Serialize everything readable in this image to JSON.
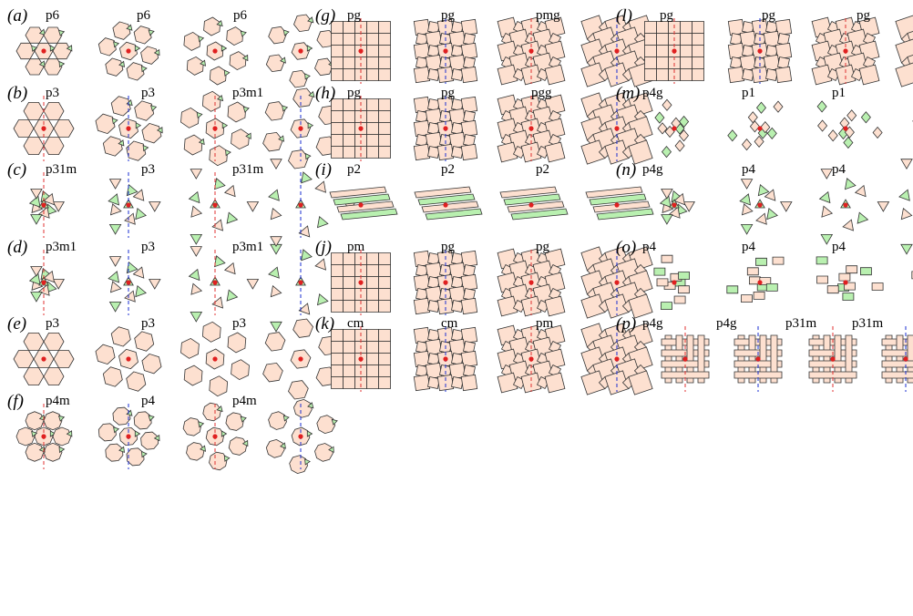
{
  "colors": {
    "tile": "#fde0d0",
    "accent": "#b9f0b0",
    "stroke": "#333333",
    "center": "#e02020",
    "mirror": "#e03030",
    "glide": "#1a2ed0"
  },
  "panels": [
    {
      "label": "(a)",
      "groups": [
        "p6",
        "p6",
        "p6"
      ],
      "style": "star"
    },
    {
      "label": "(b)",
      "groups": [
        "p3",
        "p3",
        "p3m1"
      ],
      "style": "hex"
    },
    {
      "label": "(c)",
      "groups": [
        "p31m",
        "p3",
        "p31m"
      ],
      "style": "tri"
    },
    {
      "label": "(d)",
      "groups": [
        "p3m1",
        "p3",
        "p3m1"
      ],
      "style": "tri2"
    },
    {
      "label": "(e)",
      "groups": [
        "p3",
        "p3",
        "p3"
      ],
      "style": "hexout"
    },
    {
      "label": "(f)",
      "groups": [
        "p4m",
        "p4",
        "p4m"
      ],
      "style": "oct"
    },
    {
      "label": "(g)",
      "groups": [
        "pg",
        "pg",
        "pmg"
      ],
      "style": "grid"
    },
    {
      "label": "(h)",
      "groups": [
        "pg",
        "pg",
        "pgg"
      ],
      "style": "grid"
    },
    {
      "label": "(i)",
      "groups": [
        "p2",
        "p2",
        "p2"
      ],
      "style": "strip"
    },
    {
      "label": "(j)",
      "groups": [
        "pm",
        "pg",
        "pg"
      ],
      "style": "grid"
    },
    {
      "label": "(k)",
      "groups": [
        "cm",
        "cm",
        "pm"
      ],
      "style": "grid"
    },
    {
      "label": "(l)",
      "groups": [
        "pg",
        "pg",
        "pg"
      ],
      "style": "grid"
    },
    {
      "label": "(m)",
      "groups": [
        "p4g",
        "p1",
        "p1"
      ],
      "style": "rhomb"
    },
    {
      "label": "(n)",
      "groups": [
        "p4g",
        "p4",
        "p4"
      ],
      "style": "tri4"
    },
    {
      "label": "(o)",
      "groups": [
        "p4",
        "p4",
        "p4"
      ],
      "style": "rect"
    },
    {
      "label": "(p)",
      "groups": [
        "p4g",
        "p4g",
        "p31m",
        "p31m"
      ],
      "style": "weave"
    }
  ]
}
